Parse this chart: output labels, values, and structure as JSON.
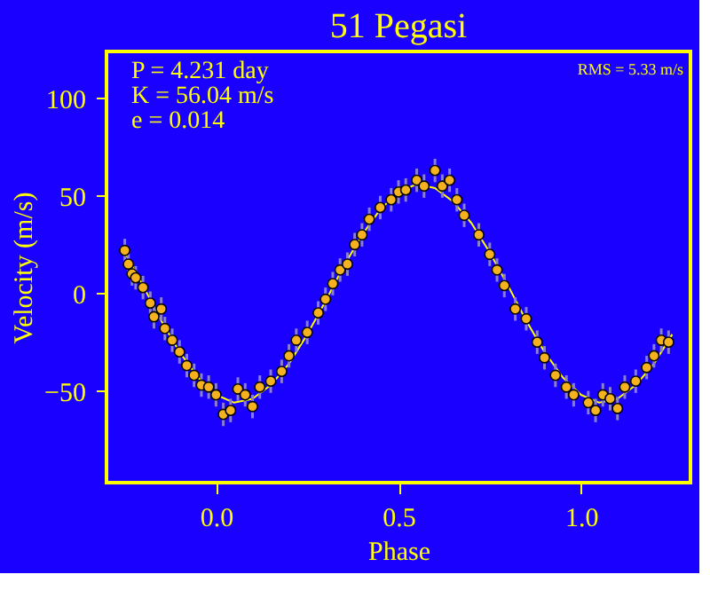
{
  "chart_data": {
    "type": "scatter",
    "title": "51 Pegasi",
    "xlabel": "Phase",
    "ylabel": "Velocity (m/s)",
    "annotations": [
      "P = 4.231 day",
      "K = 56.04 m/s",
      "e = 0.014",
      "RMS = 5.33 m/s"
    ],
    "xlim": [
      -0.3,
      1.3
    ],
    "ylim": [
      -97,
      124
    ],
    "xticks": [
      {
        "value": 0,
        "label": "0.0"
      },
      {
        "value": 0.5,
        "label": "0.5"
      },
      {
        "value": 1,
        "label": "1.0"
      }
    ],
    "yticks": [
      -50,
      0,
      50,
      100
    ],
    "grid": false,
    "marker": "circle",
    "series": [
      {
        "type": "line",
        "color": "#ffff00",
        "line_style": "solid",
        "marker": "none",
        "x": [
          -0.25,
          -0.2,
          -0.15,
          -0.1,
          -0.05,
          0,
          0.05,
          0.1,
          0.15,
          0.2,
          0.25,
          0.3,
          0.35,
          0.4,
          0.45,
          0.5,
          0.55,
          0.6,
          0.65,
          0.7,
          0.75,
          0.8,
          0.85,
          0.9,
          0.95,
          1.0,
          1.05,
          1.1,
          1.15,
          1.2,
          1.25
        ],
        "values": [
          21,
          4,
          -14,
          -30,
          -43,
          -52,
          -56,
          -54,
          -47,
          -36,
          -21,
          -4,
          14,
          30,
          43,
          52,
          56,
          54,
          47,
          36,
          21,
          4,
          -14,
          -30,
          -43,
          -52,
          -56,
          -54,
          -47,
          -36,
          -21
        ]
      },
      {
        "color": "#f5b21e",
        "x": [
          -0.25,
          -0.24,
          -0.23,
          -0.22,
          -0.2,
          -0.18,
          -0.17,
          -0.15,
          -0.14,
          -0.12,
          -0.1,
          -0.08,
          -0.06,
          -0.04,
          -0.02,
          0.0,
          0.02,
          0.04,
          0.06,
          0.08,
          0.1,
          0.12,
          0.15,
          0.18,
          0.2,
          0.22,
          0.25,
          0.28,
          0.3,
          0.32,
          0.34,
          0.36,
          0.38,
          0.4,
          0.42,
          0.45,
          0.48,
          0.5,
          0.52,
          0.55,
          0.57,
          0.6,
          0.62,
          0.64,
          0.66,
          0.68,
          0.72,
          0.75,
          0.77,
          0.79,
          0.82,
          0.85,
          0.88,
          0.9,
          0.93,
          0.96,
          0.98,
          1.02,
          1.04,
          1.06,
          1.08,
          1.1,
          1.12,
          1.15,
          1.18,
          1.2,
          1.22,
          1.24
        ],
        "values": [
          22,
          15,
          10,
          8,
          3,
          -5,
          -12,
          -8,
          -18,
          -24,
          -30,
          -37,
          -42,
          -47,
          -48,
          -52,
          -62,
          -60,
          -49,
          -52,
          -58,
          -48,
          -45,
          -40,
          -32,
          -24,
          -20,
          -10,
          -3,
          5,
          12,
          15,
          25,
          30,
          38,
          44,
          48,
          52,
          53,
          58,
          55,
          63,
          55,
          58,
          48,
          40,
          30,
          20,
          12,
          4,
          -8,
          -13,
          -25,
          -33,
          -42,
          -48,
          -52,
          -56,
          -60,
          -52,
          -54,
          -59,
          -48,
          -45,
          -38,
          -32,
          -24,
          -25
        ],
        "errors": [
          6,
          6,
          6,
          6,
          6,
          6,
          6,
          6,
          6,
          6,
          6,
          6,
          6,
          6,
          6,
          6,
          6,
          6,
          6,
          6,
          6,
          6,
          6,
          6,
          6,
          6,
          6,
          6,
          6,
          6,
          6,
          6,
          6,
          6,
          6,
          6,
          6,
          6,
          6,
          6,
          6,
          6,
          6,
          6,
          6,
          6,
          6,
          6,
          6,
          6,
          6,
          6,
          6,
          6,
          6,
          6,
          6,
          6,
          6,
          6,
          6,
          6,
          6,
          6,
          6,
          6,
          6,
          6
        ]
      }
    ]
  }
}
